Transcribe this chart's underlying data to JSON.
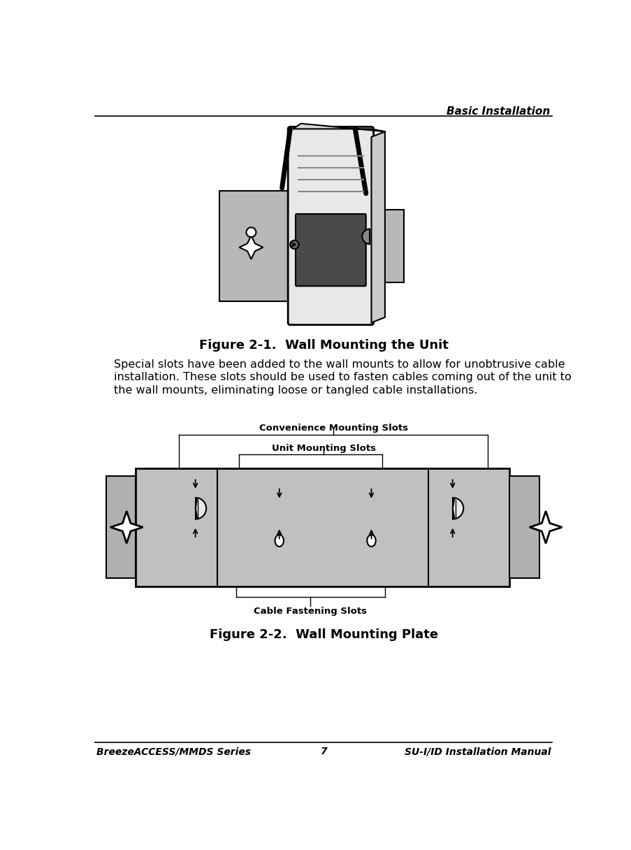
{
  "bg_color": "#ffffff",
  "header_text": "Basic Installation",
  "footer_left": "BreezeACCESS/MMDS Series",
  "footer_center": "7",
  "footer_right": "SU-I/ID Installation Manual",
  "figure1_caption": "Figure 2-1.  Wall Mounting the Unit",
  "body_line1": "Special slots have been added to the wall mounts to allow for unobtrusive cable",
  "body_line2": "installation. These slots should be used to fasten cables coming out of the unit to",
  "body_line3": "the wall mounts, eliminating loose or tangled cable installations.",
  "label_convenience": "Convenience Mounting Slots",
  "label_unit": "Unit Mounting Slots",
  "label_cable": "Cable Fastening Slots",
  "figure2_caption": "Figure 2-2.  Wall Mounting Plate",
  "plate_color": "#c0c0c0",
  "wing_color": "#b0b0b0",
  "device_color": "#e8e8e8",
  "device_side_color": "#cccccc",
  "screen_color": "#4a4a4a",
  "bracket_color": "#b8b8b8"
}
